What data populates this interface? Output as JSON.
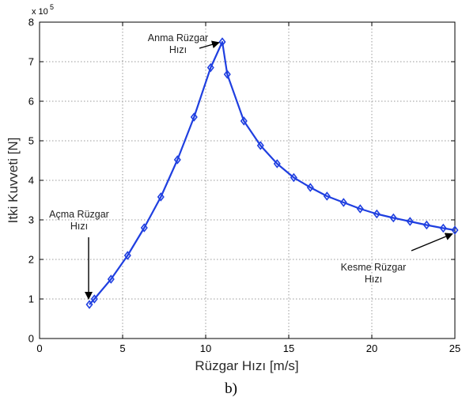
{
  "chart_data": {
    "type": "line",
    "xlabel": "Rüzgar Hızı [m/s]",
    "ylabel": "Itki Kuvveti [N]",
    "xlim": [
      0,
      25
    ],
    "ylim": [
      0,
      8
    ],
    "xticks": [
      "0",
      "5",
      "10",
      "15",
      "20",
      "25"
    ],
    "yticks": [
      "0",
      "1",
      "2",
      "3",
      "4",
      "5",
      "6",
      "7",
      "8"
    ],
    "y_multiplier": "x 10",
    "y_multiplier_exp": "5",
    "grid": true,
    "caption": "b)",
    "color": "#1f3fe0",
    "marker": "diamond",
    "series": [
      {
        "x": [
          3,
          3.3,
          4.3,
          5.3,
          6.3,
          7.3,
          8.3,
          9.3,
          10.3,
          11,
          11.3,
          12.3,
          13.3,
          14.3,
          15.3,
          16.3,
          17.3,
          18.3,
          19.3,
          20.3,
          21.3,
          22.3,
          23.3,
          24.3,
          25
        ],
        "y": [
          0.86,
          1.0,
          1.5,
          2.1,
          2.8,
          3.58,
          4.52,
          5.6,
          6.85,
          7.5,
          6.68,
          5.5,
          4.88,
          4.42,
          4.07,
          3.82,
          3.6,
          3.44,
          3.28,
          3.15,
          3.05,
          2.96,
          2.87,
          2.79,
          2.74
        ]
      }
    ],
    "annotations": [
      {
        "lines": [
          "Anma Rüzgar",
          "Hızı"
        ],
        "target": [
          11,
          7.5
        ]
      },
      {
        "lines": [
          "Açma Rüzgar",
          "Hızı"
        ],
        "target": [
          3,
          0.86
        ]
      },
      {
        "lines": [
          "Kesme Rüzgar",
          "Hızı"
        ],
        "target": [
          25,
          2.74
        ]
      }
    ]
  }
}
